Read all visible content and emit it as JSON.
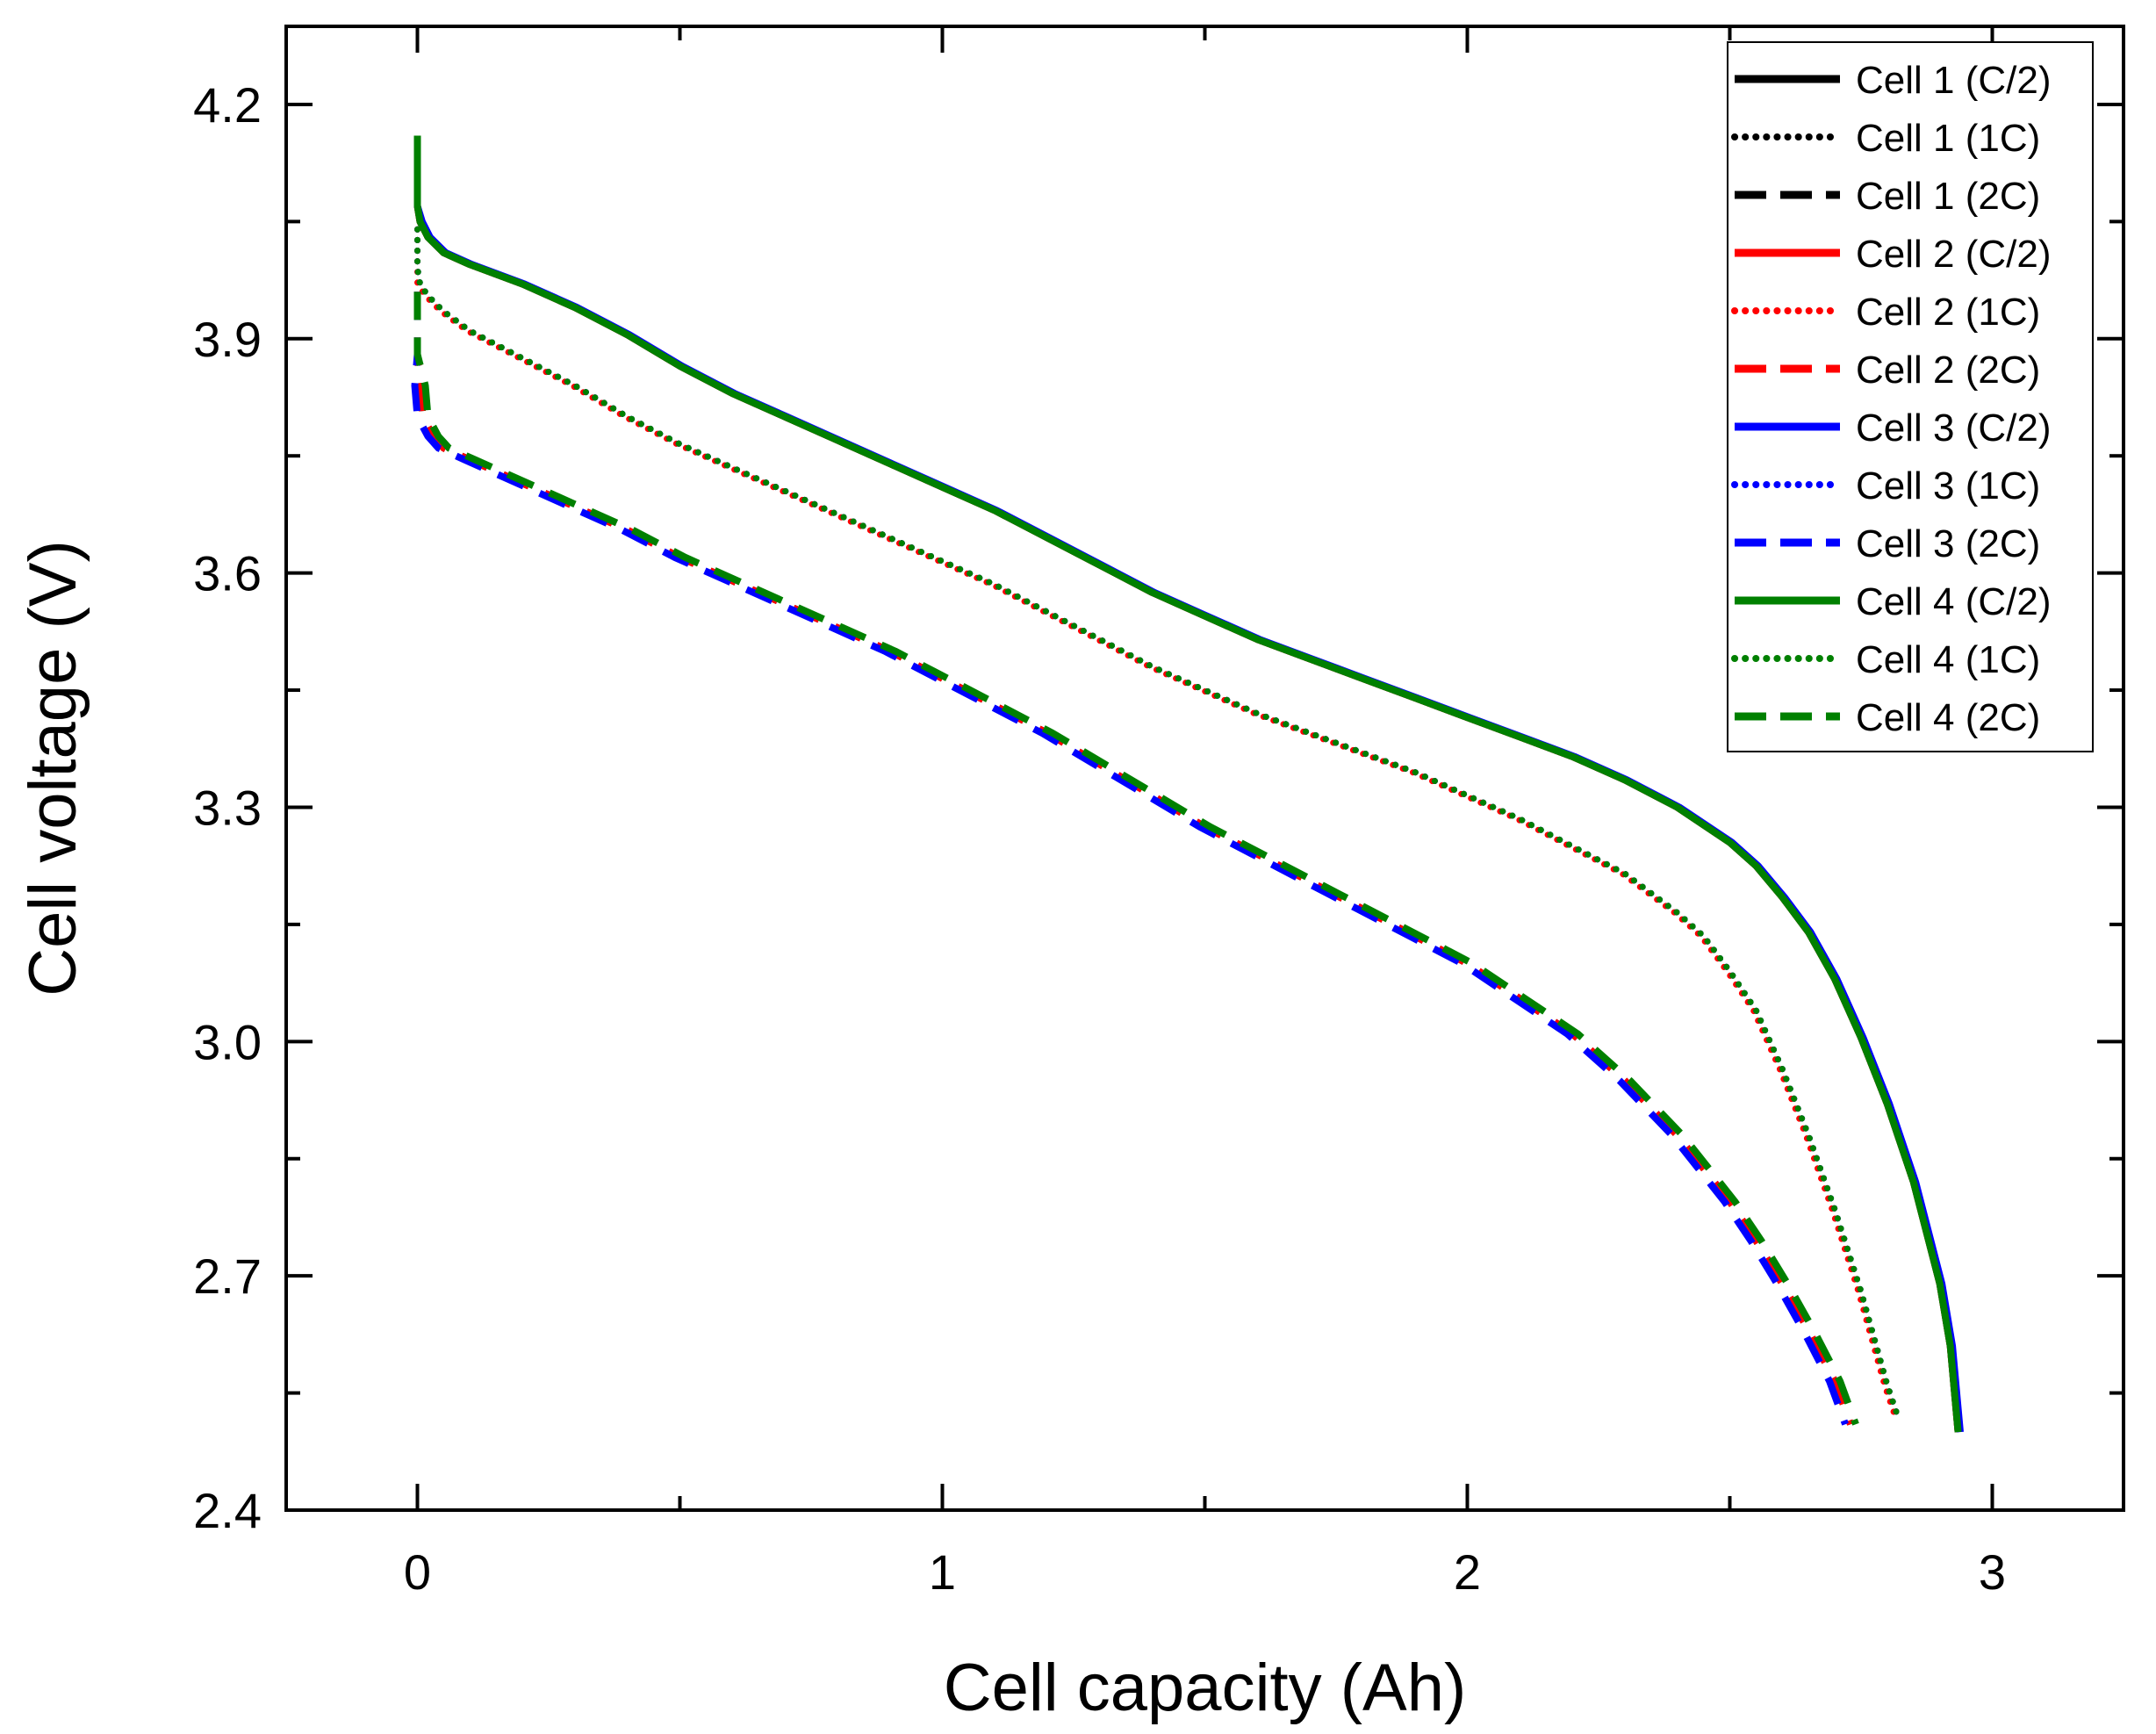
{
  "chart_data": {
    "type": "line",
    "title": "",
    "xlabel": "Cell capacity (Ah)",
    "ylabel": "Cell voltage (V)",
    "xlim": [
      -0.25,
      3.25
    ],
    "ylim": [
      2.4,
      4.3
    ],
    "x_ticks": [
      {
        "value": 0,
        "label": "0"
      },
      {
        "value": 1,
        "label": "1"
      },
      {
        "value": 2,
        "label": "2"
      },
      {
        "value": 3,
        "label": "3"
      }
    ],
    "x_minor_ticks": [
      0.5,
      1.5,
      2.5
    ],
    "y_ticks": [
      {
        "value": 2.4,
        "label": "2.4"
      },
      {
        "value": 2.7,
        "label": "2.7"
      },
      {
        "value": 3.0,
        "label": "3.0"
      },
      {
        "value": 3.3,
        "label": "3.3"
      },
      {
        "value": 3.6,
        "label": "3.6"
      },
      {
        "value": 3.9,
        "label": "3.9"
      },
      {
        "value": 4.2,
        "label": "4.2"
      }
    ],
    "y_minor_ticks": [
      2.55,
      2.85,
      3.15,
      3.45,
      3.75,
      4.05
    ],
    "grid": false,
    "legend_position": "top-right",
    "series": [
      {
        "name": "Cell 1 (C/2)",
        "color": "#000000",
        "style": "solid",
        "profile": "c2",
        "x_shift": 0.0,
        "v_shift": 0.0
      },
      {
        "name": "Cell 1 (1C)",
        "color": "#000000",
        "style": "dotted",
        "profile": "c1",
        "x_shift": 0.0,
        "v_shift": 0.0
      },
      {
        "name": "Cell 1 (2C)",
        "color": "#000000",
        "style": "dashed",
        "profile": "c2c",
        "x_shift": 0.0,
        "v_shift": 0.0
      },
      {
        "name": "Cell 2 (C/2)",
        "color": "#ff0000",
        "style": "solid",
        "profile": "c2",
        "x_shift": 0.0,
        "v_shift": 0.0
      },
      {
        "name": "Cell 2 (1C)",
        "color": "#ff0000",
        "style": "dotted",
        "profile": "c1",
        "x_shift": -0.005,
        "v_shift": 0.0
      },
      {
        "name": "Cell 2 (2C)",
        "color": "#ff0000",
        "style": "dashed",
        "profile": "c2c",
        "x_shift": 0.0,
        "v_shift": 0.0
      },
      {
        "name": "Cell 3 (C/2)",
        "color": "#0000ff",
        "style": "solid",
        "profile": "c2",
        "x_shift": 0.004,
        "v_shift": 0.0
      },
      {
        "name": "Cell 3 (1C)",
        "color": "#0000ff",
        "style": "dotted",
        "profile": "c1",
        "x_shift": 0.0,
        "v_shift": 0.0
      },
      {
        "name": "Cell 3 (2C)",
        "color": "#0000ff",
        "style": "dashed",
        "profile": "c2c",
        "x_shift": -0.01,
        "v_shift": 0.0
      },
      {
        "name": "Cell 4 (C/2)",
        "color": "#008000",
        "style": "solid",
        "profile": "c2",
        "x_shift": 0.0,
        "v_shift": 0.0
      },
      {
        "name": "Cell 4 (1C)",
        "color": "#008000",
        "style": "dotted",
        "profile": "c1",
        "x_shift": 0.0,
        "v_shift": 0.0
      },
      {
        "name": "Cell 4 (2C)",
        "color": "#008000",
        "style": "dashed",
        "profile": "c2c",
        "x_shift": 0.01,
        "v_shift": 0.0
      }
    ],
    "profiles": {
      "c2": {
        "x": [
          0.0,
          0.0,
          0.0,
          0.005,
          0.02,
          0.05,
          0.1,
          0.2,
          0.3,
          0.4,
          0.5,
          0.6,
          0.7,
          0.8,
          0.9,
          1.0,
          1.1,
          1.2,
          1.3,
          1.4,
          1.5,
          1.6,
          1.7,
          1.8,
          1.9,
          2.0,
          2.1,
          2.2,
          2.3,
          2.4,
          2.5,
          2.55,
          2.6,
          2.65,
          2.7,
          2.75,
          2.8,
          2.85,
          2.9,
          2.92,
          2.935
        ],
        "y": [
          4.16,
          4.1,
          4.07,
          4.05,
          4.03,
          4.01,
          3.995,
          3.97,
          3.94,
          3.905,
          3.865,
          3.83,
          3.8,
          3.77,
          3.74,
          3.71,
          3.68,
          3.645,
          3.61,
          3.575,
          3.545,
          3.515,
          3.49,
          3.465,
          3.44,
          3.415,
          3.39,
          3.365,
          3.335,
          3.3,
          3.255,
          3.225,
          3.185,
          3.14,
          3.08,
          3.005,
          2.92,
          2.82,
          2.69,
          2.61,
          2.5
        ]
      },
      "c1": {
        "x": [
          0.0,
          0.0,
          0.005,
          0.02,
          0.05,
          0.1,
          0.2,
          0.3,
          0.4,
          0.5,
          0.6,
          0.7,
          0.8,
          0.9,
          1.0,
          1.1,
          1.2,
          1.3,
          1.4,
          1.5,
          1.6,
          1.7,
          1.8,
          1.9,
          2.0,
          2.1,
          2.2,
          2.3,
          2.4,
          2.45,
          2.5,
          2.55,
          2.6,
          2.65,
          2.7,
          2.75,
          2.8,
          2.82
        ],
        "y": [
          4.04,
          3.99,
          3.97,
          3.955,
          3.935,
          3.91,
          3.875,
          3.84,
          3.8,
          3.765,
          3.735,
          3.705,
          3.675,
          3.645,
          3.615,
          3.585,
          3.55,
          3.515,
          3.48,
          3.45,
          3.42,
          3.395,
          3.37,
          3.345,
          3.315,
          3.285,
          3.25,
          3.215,
          3.165,
          3.135,
          3.09,
          3.04,
          2.965,
          2.88,
          2.785,
          2.68,
          2.56,
          2.52
        ]
      },
      "c2c": {
        "x": [
          0.0,
          0.0,
          0.005,
          0.01,
          0.03,
          0.05,
          0.1,
          0.2,
          0.3,
          0.4,
          0.5,
          0.6,
          0.7,
          0.8,
          0.9,
          1.0,
          1.1,
          1.2,
          1.3,
          1.4,
          1.5,
          1.6,
          1.7,
          1.8,
          1.9,
          2.0,
          2.1,
          2.2,
          2.3,
          2.4,
          2.5,
          2.55,
          2.6,
          2.65,
          2.7,
          2.73
        ],
        "y": [
          3.96,
          3.88,
          3.84,
          3.8,
          3.775,
          3.76,
          3.745,
          3.715,
          3.685,
          3.655,
          3.62,
          3.59,
          3.56,
          3.53,
          3.5,
          3.465,
          3.43,
          3.395,
          3.355,
          3.315,
          3.275,
          3.24,
          3.205,
          3.17,
          3.135,
          3.1,
          3.055,
          3.01,
          2.95,
          2.88,
          2.795,
          2.745,
          2.69,
          2.63,
          2.565,
          2.51
        ]
      }
    }
  }
}
